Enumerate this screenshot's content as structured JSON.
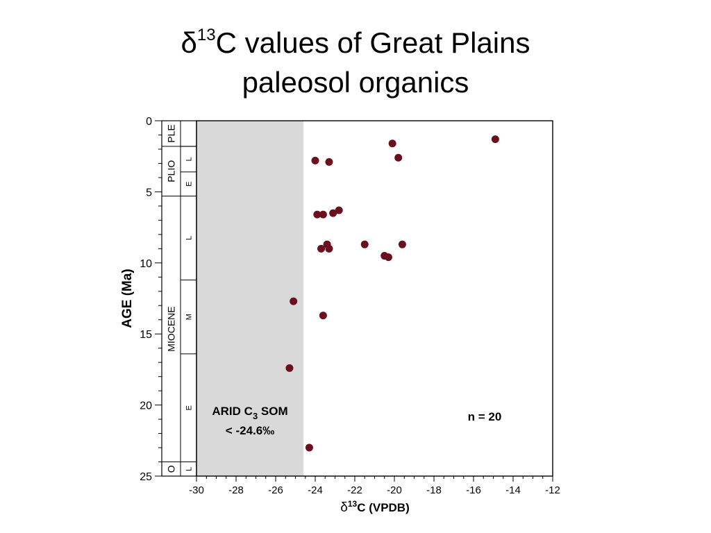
{
  "slide": {
    "title": {
      "symbol": "δ",
      "superscript": "13",
      "line1_rest": "C values of Great Plains",
      "line2": "paleosol organics"
    }
  },
  "chart_data": {
    "type": "scatter",
    "title": "",
    "xlabel": {
      "symbol": "δ",
      "superscript": "13",
      "rest": "C  (VPDB)"
    },
    "ylabel": "AGE  (Ma)",
    "xlim": [
      -30,
      -12
    ],
    "ylim": [
      0,
      25
    ],
    "y_inverted": true,
    "xticks": [
      -30,
      -28,
      -26,
      -24,
      -22,
      -20,
      -18,
      -16,
      -14,
      -12
    ],
    "yticks": [
      0,
      5,
      10,
      15,
      20,
      25
    ],
    "grid": false,
    "point_color": "#6b0f1f",
    "points": [
      {
        "x": -14.9,
        "y": 1.3
      },
      {
        "x": -20.1,
        "y": 1.6
      },
      {
        "x": -19.8,
        "y": 2.6
      },
      {
        "x": -24.0,
        "y": 2.8
      },
      {
        "x": -23.3,
        "y": 2.9
      },
      {
        "x": -22.8,
        "y": 6.3
      },
      {
        "x": -23.1,
        "y": 6.5
      },
      {
        "x": -23.6,
        "y": 6.6
      },
      {
        "x": -23.9,
        "y": 6.6
      },
      {
        "x": -23.4,
        "y": 8.7
      },
      {
        "x": -21.5,
        "y": 8.7
      },
      {
        "x": -19.6,
        "y": 8.7
      },
      {
        "x": -23.7,
        "y": 9.0
      },
      {
        "x": -23.3,
        "y": 9.0
      },
      {
        "x": -20.5,
        "y": 9.5
      },
      {
        "x": -20.3,
        "y": 9.6
      },
      {
        "x": -25.1,
        "y": 12.7
      },
      {
        "x": -23.6,
        "y": 13.7
      },
      {
        "x": -25.3,
        "y": 17.4
      },
      {
        "x": -24.3,
        "y": 23.0
      }
    ],
    "shaded_region": {
      "x_from": -30,
      "x_to": -24.6,
      "color": "#d9d9d9",
      "label_line1": "ARID  C",
      "label_line1_subscript": "3",
      "label_line1_rest": "  SOM",
      "label_line2": "< -24.6‰"
    },
    "annotation": "n = 20",
    "epochs": [
      {
        "label": "PLE",
        "from": 0,
        "to": 1.8
      },
      {
        "label": "PLIO",
        "from": 1.8,
        "to": 5.3
      },
      {
        "label": "MIOCENE",
        "from": 5.3,
        "to": 24.0
      },
      {
        "label": "O",
        "from": 24.0,
        "to": 25.0
      }
    ],
    "subepochs": [
      {
        "label": "",
        "from": 0,
        "to": 1.8
      },
      {
        "label": "L",
        "from": 1.8,
        "to": 3.6
      },
      {
        "label": "E",
        "from": 3.6,
        "to": 5.3
      },
      {
        "label": "L",
        "from": 5.3,
        "to": 11.2
      },
      {
        "label": "M",
        "from": 11.2,
        "to": 16.4
      },
      {
        "label": "E",
        "from": 16.4,
        "to": 24.0
      },
      {
        "label": "L",
        "from": 24.0,
        "to": 25.0
      }
    ]
  }
}
